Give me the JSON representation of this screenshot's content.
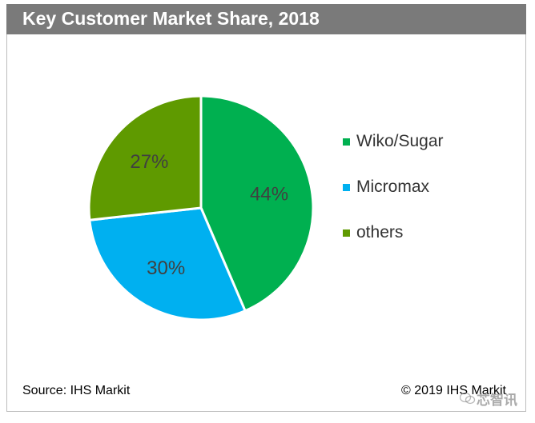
{
  "header": {
    "title": "Key Customer Market Share, 2018"
  },
  "chart_data": {
    "type": "pie",
    "title": "Key Customer Market Share, 2018",
    "slices": [
      {
        "label": "Wiko/Sugar",
        "value": 44,
        "value_label": "44%",
        "color": "#00b050"
      },
      {
        "label": "Micromax",
        "value": 30,
        "value_label": "30%",
        "color": "#00b0f0"
      },
      {
        "label": "others",
        "value": 27,
        "value_label": "27%",
        "color": "#5f9a00"
      }
    ],
    "legend_position": "right"
  },
  "footer": {
    "source": "Source: IHS Markit",
    "copyright": "© 2019 IHS Markit",
    "watermark": "芯智讯"
  }
}
